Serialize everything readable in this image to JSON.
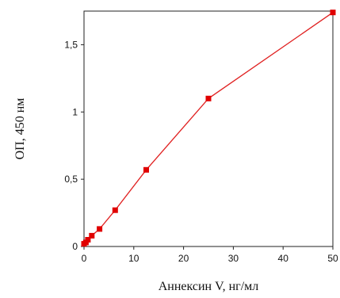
{
  "chart_data": {
    "type": "line",
    "xlabel": "Аннексин V, нг/мл",
    "ylabel": "ОП, 450 нм",
    "xlim": [
      0,
      50
    ],
    "ylim": [
      0,
      1.75
    ],
    "x_ticks": [
      0,
      10,
      20,
      30,
      40,
      50
    ],
    "x_tick_labels": [
      "0",
      "10",
      "20",
      "30",
      "40",
      "50"
    ],
    "y_ticks": [
      0,
      0.5,
      1,
      1.5
    ],
    "y_tick_labels": [
      "0",
      "0,5",
      "1",
      "1,5"
    ],
    "grid": false,
    "legend": "none",
    "series": [
      {
        "color": "#e02020",
        "marker_color": "#e00000",
        "x": [
          0,
          0.39,
          0.78,
          1.56,
          3.125,
          6.25,
          12.5,
          25,
          50
        ],
        "y": [
          0.02,
          0.03,
          0.05,
          0.08,
          0.13,
          0.27,
          0.57,
          1.1,
          1.74
        ]
      }
    ]
  }
}
